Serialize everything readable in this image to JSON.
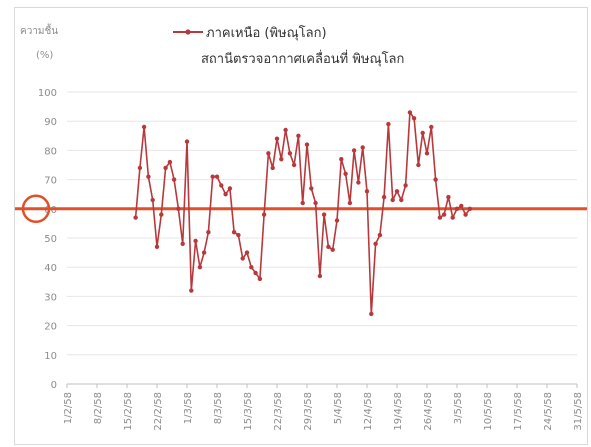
{
  "chart_data": {
    "type": "line",
    "title": "สถานีตรวจอากาศเคลื่อนที่ พิษณุโลก",
    "ylabel": "ความชื้น",
    "yunit": "(%)",
    "ylim": [
      0,
      100
    ],
    "yticks": [
      0,
      10,
      20,
      30,
      40,
      50,
      60,
      70,
      80,
      90,
      100
    ],
    "xlim": [
      "1/2/58",
      "31/5/58"
    ],
    "xticks": [
      "1/2/58",
      "8/2/58",
      "15/2/58",
      "22/2/58",
      "1/3/58",
      "8/3/58",
      "15/3/58",
      "22/3/58",
      "29/3/58",
      "5/4/58",
      "12/4/58",
      "19/4/58",
      "26/4/58",
      "3/5/58",
      "10/5/58",
      "17/5/58",
      "24/5/58",
      "31/5/58"
    ],
    "grid": true,
    "legend_position": "top",
    "threshold": {
      "value": 60,
      "color": "#e2502a",
      "marker": "circle"
    },
    "series": [
      {
        "name": "ภาคเหนือ (พิษณุโลก)",
        "color": "#b8393c",
        "x": [
          "17/2/58",
          "18/2/58",
          "19/2/58",
          "20/2/58",
          "21/2/58",
          "22/2/58",
          "23/2/58",
          "24/2/58",
          "25/2/58",
          "26/2/58",
          "27/2/58",
          "28/2/58",
          "1/3/58",
          "2/3/58",
          "3/3/58",
          "4/3/58",
          "5/3/58",
          "6/3/58",
          "7/3/58",
          "8/3/58",
          "9/3/58",
          "10/3/58",
          "11/3/58",
          "12/3/58",
          "13/3/58",
          "14/3/58",
          "15/3/58",
          "16/3/58",
          "17/3/58",
          "18/3/58",
          "19/3/58",
          "20/3/58",
          "21/3/58",
          "22/3/58",
          "23/3/58",
          "24/3/58",
          "25/3/58",
          "26/3/58",
          "27/3/58",
          "28/3/58",
          "29/3/58",
          "30/3/58",
          "31/3/58",
          "1/4/58",
          "2/4/58",
          "3/4/58",
          "4/4/58",
          "5/4/58",
          "6/4/58",
          "7/4/58",
          "8/4/58",
          "9/4/58",
          "10/4/58",
          "11/4/58",
          "12/4/58",
          "13/4/58",
          "14/4/58",
          "15/4/58",
          "16/4/58",
          "17/4/58",
          "18/4/58",
          "19/4/58",
          "20/4/58",
          "21/4/58",
          "22/4/58",
          "23/4/58",
          "24/4/58",
          "25/4/58",
          "26/4/58",
          "27/4/58",
          "28/4/58",
          "29/4/58",
          "30/4/58",
          "1/5/58",
          "2/5/58",
          "3/5/58",
          "4/5/58",
          "5/5/58",
          "6/5/58"
        ],
        "values": [
          57,
          74,
          88,
          71,
          63,
          47,
          58,
          74,
          76,
          70,
          60,
          48,
          83,
          32,
          49,
          40,
          45,
          52,
          71,
          71,
          68,
          65,
          67,
          52,
          51,
          43,
          45,
          40,
          38,
          36,
          58,
          79,
          74,
          84,
          77,
          87,
          79,
          75,
          85,
          62,
          82,
          67,
          62,
          37,
          58,
          47,
          46,
          56,
          77,
          72,
          62,
          80,
          69,
          81,
          66,
          24,
          48,
          51,
          64,
          89,
          63,
          66,
          63,
          68,
          93,
          91,
          75,
          86,
          79,
          88,
          70,
          57,
          58,
          64,
          57,
          60,
          61,
          58,
          60
        ]
      }
    ]
  }
}
